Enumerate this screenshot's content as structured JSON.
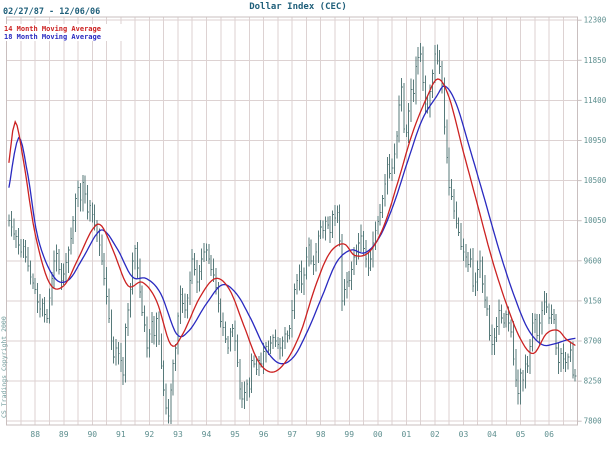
{
  "header": {
    "title": "Dollar Index (CEC)",
    "date_range": "02/27/87 - 12/06/06"
  },
  "legend": [
    {
      "label": "14 Month Moving Average",
      "color": "#cc2222"
    },
    {
      "label": "18 Month Moving Average",
      "color": "#2a2ac0"
    }
  ],
  "watermark": "CS Tradings Copyright 2000",
  "colors": {
    "background": "#ffffff",
    "bar": "#577a7a",
    "grid": "#ddd2d2",
    "plot_border": "#c9bfbf",
    "axis_text": "#5e8f8f",
    "title_text": "#1f5f7a",
    "red_ma": "#cc2222",
    "blue_ma": "#2a2ac0",
    "watermark_text": "#6f9a9a"
  },
  "chart_data": {
    "type": "bar",
    "subtype": "monthly-ohlc-with-moving-averages",
    "title": "Dollar Index (CEC)",
    "date_range_label": "02/27/87 - 12/06/06",
    "ylim": [
      7650,
      12420
    ],
    "y_ticks": [
      12300,
      11850,
      11400,
      10950,
      10500,
      10050,
      9600,
      9150,
      8700,
      8250,
      7800
    ],
    "x_year_labels": [
      "88",
      "89",
      "90",
      "91",
      "92",
      "93",
      "94",
      "95",
      "96",
      "97",
      "98",
      "99",
      "00",
      "01",
      "02",
      "03",
      "04",
      "05",
      "06"
    ],
    "grid": "half-year vertical, 450-point horizontal",
    "legend_position": "top-left inside plot",
    "start": {
      "year": 1987,
      "month": 2
    },
    "end": {
      "year": 2006,
      "month": 12
    },
    "bar_range_hint": 155,
    "monthly_close": [
      10050,
      9980,
      9900,
      9870,
      9780,
      9700,
      9760,
      9640,
      9540,
      9420,
      9350,
      9280,
      9140,
      9060,
      9120,
      9000,
      8950,
      9180,
      9400,
      9600,
      9680,
      9500,
      9380,
      9450,
      9580,
      9720,
      9850,
      10050,
      10300,
      10420,
      10280,
      10480,
      10350,
      10150,
      10220,
      10120,
      10000,
      9920,
      9780,
      9600,
      9400,
      9200,
      8950,
      8700,
      8520,
      8620,
      8560,
      8480,
      8320,
      8850,
      9050,
      9280,
      9600,
      9740,
      9520,
      9250,
      9020,
      8880,
      8620,
      8780,
      8920,
      8760,
      8950,
      8700,
      8420,
      8150,
      7950,
      7860,
      8150,
      8450,
      8620,
      8980,
      9220,
      9120,
      9050,
      9180,
      9380,
      9620,
      9500,
      9360,
      9480,
      9620,
      9700,
      9720,
      9620,
      9500,
      9440,
      9300,
      9120,
      8920,
      8850,
      8720,
      8620,
      8800,
      8840,
      8700,
      8460,
      8160,
      8050,
      8120,
      8220,
      8160,
      8480,
      8440,
      8380,
      8480,
      8440,
      8580,
      8640,
      8600,
      8680,
      8740,
      8700,
      8660,
      8620,
      8700,
      8780,
      8760,
      8840,
      9040,
      9280,
      9380,
      9480,
      9340,
      9440,
      9640,
      9780,
      9600,
      9560,
      9700,
      9880,
      9980,
      9940,
      10040,
      10000,
      9920,
      10120,
      10080,
      10140,
      9820,
      9150,
      9280,
      9360,
      9380,
      9500,
      9640,
      9700,
      9800,
      9880,
      9740,
      9620,
      9520,
      9620,
      9800,
      9940,
      10040,
      10140,
      10300,
      10460,
      10680,
      10580,
      10640,
      10800,
      11000,
      11350,
      11550,
      11080,
      11040,
      11280,
      11520,
      11480,
      11780,
      11880,
      11920,
      11600,
      11360,
      11320,
      11500,
      11700,
      11920,
      11840,
      11780,
      11560,
      11100,
      10760,
      10420,
      10320,
      10160,
      10020,
      9920,
      9760,
      9700,
      9640,
      9560,
      9620,
      9320,
      9360,
      9500,
      9600,
      9340,
      9160,
      9060,
      8760,
      8660,
      8740,
      8860,
      9040,
      8960,
      8900,
      9000,
      8900,
      8800,
      8500,
      8260,
      8110,
      8340,
      8260,
      8440,
      8420,
      8640,
      8900,
      8940,
      8760,
      8900,
      9040,
      9140,
      9080,
      8960,
      9000,
      8940,
      8620,
      8460,
      8560,
      8500,
      8460,
      8520,
      8600,
      8320,
      8310
    ],
    "series": [
      {
        "name": "14 Month Moving Average",
        "color": "#cc2222",
        "points": [
          [
            1987.08,
            10700
          ],
          [
            1987.3,
            11160
          ],
          [
            1987.6,
            10700
          ],
          [
            1988.0,
            9900
          ],
          [
            1988.5,
            9350
          ],
          [
            1989.0,
            9320
          ],
          [
            1989.5,
            9620
          ],
          [
            1990.0,
            9950
          ],
          [
            1990.33,
            9990
          ],
          [
            1990.75,
            9700
          ],
          [
            1991.25,
            9320
          ],
          [
            1991.75,
            9360
          ],
          [
            1992.25,
            9150
          ],
          [
            1992.75,
            8660
          ],
          [
            1993.17,
            8780
          ],
          [
            1993.75,
            9180
          ],
          [
            1994.3,
            9400
          ],
          [
            1994.8,
            9280
          ],
          [
            1995.3,
            8880
          ],
          [
            1995.8,
            8480
          ],
          [
            1996.3,
            8350
          ],
          [
            1996.8,
            8480
          ],
          [
            1997.3,
            8800
          ],
          [
            1997.8,
            9300
          ],
          [
            1998.3,
            9680
          ],
          [
            1998.8,
            9790
          ],
          [
            1999.2,
            9660
          ],
          [
            1999.7,
            9700
          ],
          [
            2000.2,
            9980
          ],
          [
            2000.7,
            10480
          ],
          [
            2001.2,
            11020
          ],
          [
            2001.7,
            11420
          ],
          [
            2002.1,
            11640
          ],
          [
            2002.5,
            11430
          ],
          [
            2003.0,
            10820
          ],
          [
            2003.5,
            10220
          ],
          [
            2004.0,
            9620
          ],
          [
            2004.5,
            9120
          ],
          [
            2005.0,
            8720
          ],
          [
            2005.45,
            8560
          ],
          [
            2005.9,
            8780
          ],
          [
            2006.3,
            8820
          ],
          [
            2006.6,
            8720
          ],
          [
            2006.92,
            8650
          ]
        ]
      },
      {
        "name": "18 Month Moving Average",
        "color": "#2a2ac0",
        "points": [
          [
            1987.08,
            10420
          ],
          [
            1987.42,
            10980
          ],
          [
            1987.75,
            10550
          ],
          [
            1988.1,
            9850
          ],
          [
            1988.65,
            9420
          ],
          [
            1989.15,
            9380
          ],
          [
            1989.65,
            9620
          ],
          [
            1990.15,
            9900
          ],
          [
            1990.45,
            9930
          ],
          [
            1990.9,
            9720
          ],
          [
            1991.4,
            9420
          ],
          [
            1991.9,
            9400
          ],
          [
            1992.4,
            9230
          ],
          [
            1992.95,
            8780
          ],
          [
            1993.4,
            8820
          ],
          [
            1994.0,
            9120
          ],
          [
            1994.55,
            9330
          ],
          [
            1995.05,
            9230
          ],
          [
            1995.55,
            8950
          ],
          [
            1996.05,
            8620
          ],
          [
            1996.55,
            8450
          ],
          [
            1997.05,
            8520
          ],
          [
            1997.55,
            8820
          ],
          [
            1998.05,
            9200
          ],
          [
            1998.55,
            9580
          ],
          [
            1999.05,
            9720
          ],
          [
            1999.55,
            9690
          ],
          [
            2000.05,
            9860
          ],
          [
            2000.55,
            10230
          ],
          [
            2001.05,
            10720
          ],
          [
            2001.55,
            11180
          ],
          [
            2002.05,
            11440
          ],
          [
            2002.35,
            11560
          ],
          [
            2002.75,
            11360
          ],
          [
            2003.25,
            10830
          ],
          [
            2003.75,
            10280
          ],
          [
            2004.25,
            9720
          ],
          [
            2004.75,
            9230
          ],
          [
            2005.25,
            8840
          ],
          [
            2005.75,
            8660
          ],
          [
            2006.2,
            8670
          ],
          [
            2006.6,
            8710
          ],
          [
            2006.92,
            8730
          ]
        ]
      }
    ]
  }
}
